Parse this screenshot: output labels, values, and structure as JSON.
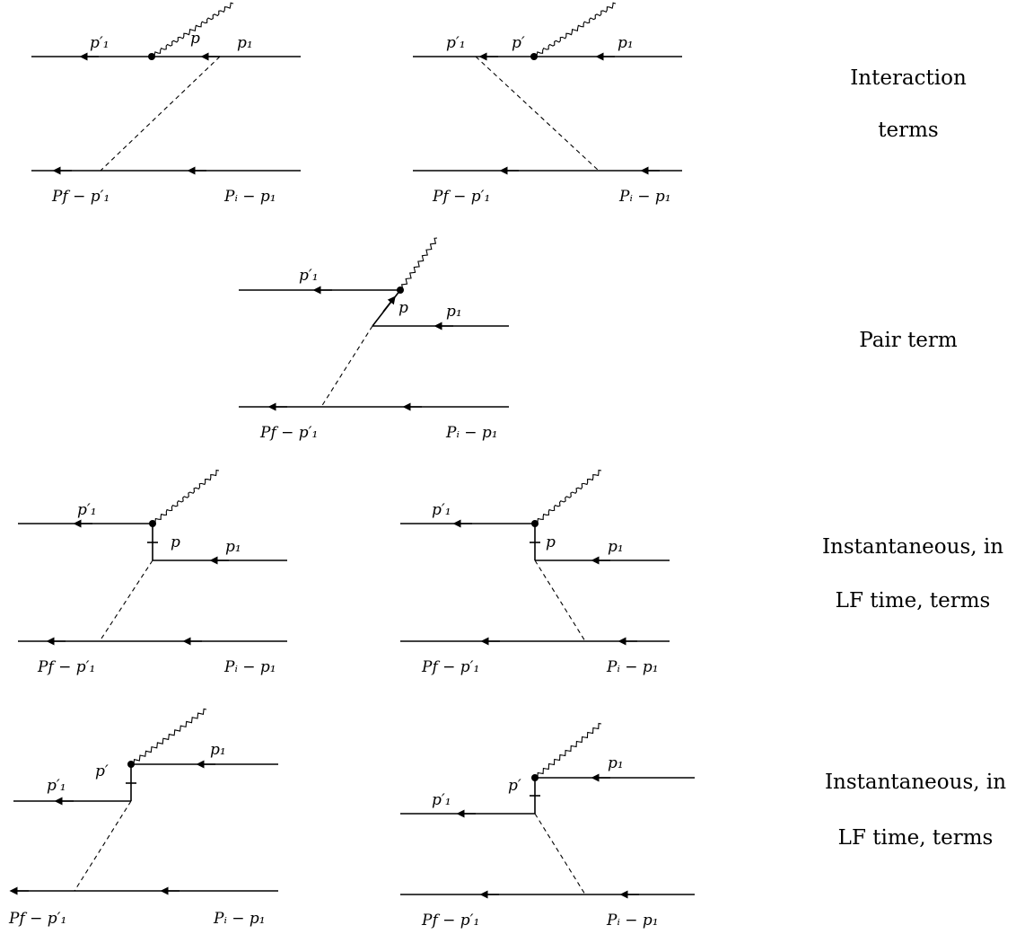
{
  "labels": {
    "p1": "p₁",
    "p1_prime": "p′₁",
    "p": "p",
    "p_prime": "p′",
    "pf_minus_p1_prime": "Pf − p′₁",
    "pi_minus_p1": "Pᵢ − p₁"
  },
  "rows": [
    {
      "caption_lines": [
        "Interaction",
        "terms"
      ]
    },
    {
      "caption_lines": [
        "Pair term"
      ]
    },
    {
      "caption_lines": [
        "Instantaneous, in",
        "LF time, terms"
      ]
    },
    {
      "caption_lines": [
        "Instantaneous, in",
        "LF time, terms"
      ]
    }
  ]
}
